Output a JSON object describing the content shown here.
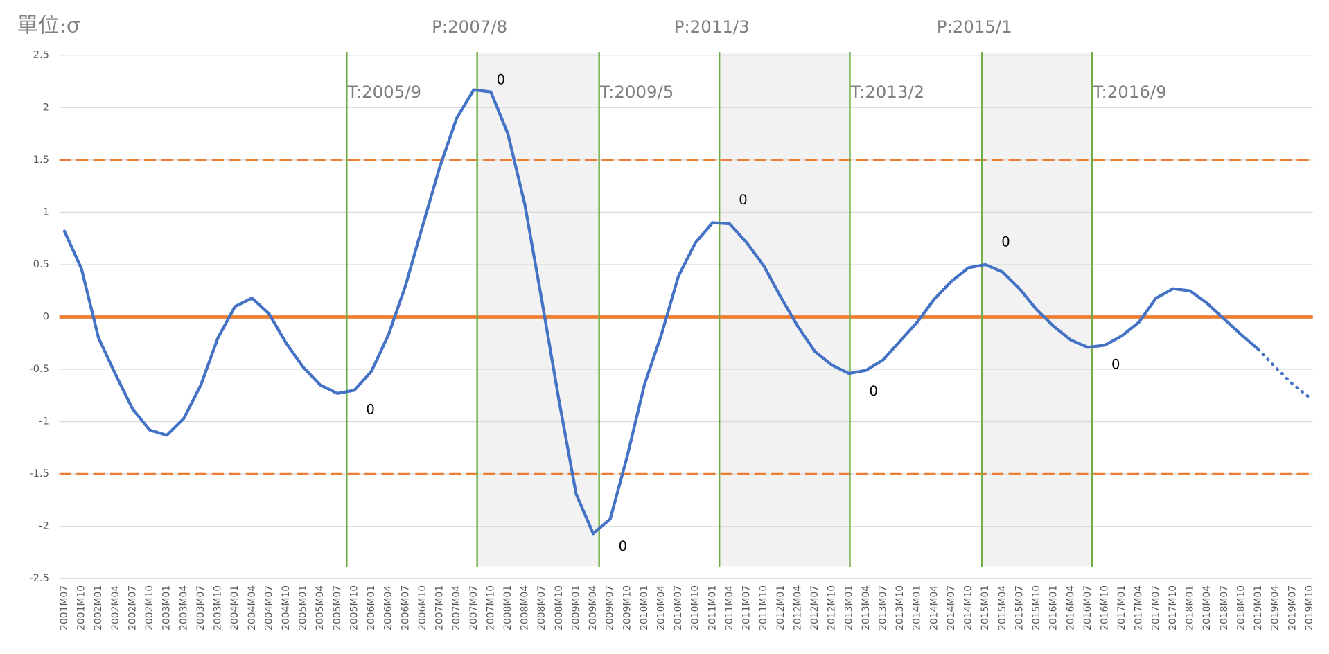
{
  "chart_data": {
    "type": "line",
    "title": "單位:σ",
    "categories": [
      "2001M07",
      "2001M10",
      "2002M01",
      "2002M04",
      "2002M07",
      "2002M10",
      "2003M01",
      "2003M04",
      "2003M07",
      "2003M10",
      "2004M01",
      "2004M04",
      "2004M07",
      "2004M10",
      "2005M01",
      "2005M04",
      "2005M07",
      "2005M10",
      "2006M01",
      "2006M04",
      "2006M07",
      "2006M10",
      "2007M01",
      "2007M04",
      "2007M07",
      "2007M10",
      "2008M01",
      "2008M04",
      "2008M07",
      "2008M10",
      "2009M01",
      "2009M04",
      "2009M07",
      "2009M10",
      "2010M01",
      "2010M04",
      "2010M07",
      "2010M10",
      "2011M01",
      "2011M04",
      "2011M07",
      "2011M10",
      "2012M01",
      "2012M04",
      "2012M07",
      "2012M10",
      "2013M01",
      "2013M04",
      "2013M07",
      "2013M10",
      "2014M01",
      "2014M04",
      "2014M07",
      "2014M10",
      "2015M01",
      "2015M04",
      "2015M07",
      "2015M10",
      "2016M01",
      "2016M04",
      "2016M07",
      "2016M10",
      "2017M01",
      "2017M04",
      "2017M07",
      "2017M10",
      "2018M01",
      "2018M04",
      "2018M07",
      "2018M10",
      "2019M01",
      "2019M04",
      "2019M07",
      "2019M10"
    ],
    "series": [
      {
        "color": "#4472c4",
        "style": "solid",
        "values": [
          0.82,
          0.46,
          -0.2,
          -0.55,
          -0.88,
          -1.08,
          -1.13,
          -0.97,
          -0.65,
          -0.2,
          0.1,
          0.18,
          0.03,
          -0.25,
          -0.48,
          -0.65,
          -0.73,
          -0.7,
          -0.52,
          -0.17,
          0.3,
          0.87,
          1.43,
          1.9,
          2.17,
          2.15,
          1.75,
          1.07,
          0.15,
          -0.8,
          -1.69,
          -2.07,
          -1.93,
          -1.33,
          -0.65,
          -0.17,
          0.39,
          0.71,
          0.9,
          0.89,
          0.71,
          0.49,
          0.19,
          -0.09,
          -0.33,
          -0.46,
          -0.54,
          -0.51,
          -0.41,
          -0.23,
          -0.05,
          0.17,
          0.34,
          0.47,
          0.5,
          0.43,
          0.27,
          0.07,
          -0.09,
          -0.22,
          -0.29,
          -0.27,
          -0.18,
          -0.05,
          0.18,
          0.27,
          0.25,
          0.13,
          -0.02,
          -0.17,
          -0.31,
          null,
          null,
          null
        ]
      },
      {
        "color": "#4472c4",
        "style": "dotted",
        "values": [
          null,
          null,
          null,
          null,
          null,
          null,
          null,
          null,
          null,
          null,
          null,
          null,
          null,
          null,
          null,
          null,
          null,
          null,
          null,
          null,
          null,
          null,
          null,
          null,
          null,
          null,
          null,
          null,
          null,
          null,
          null,
          null,
          null,
          null,
          null,
          null,
          null,
          null,
          null,
          null,
          null,
          null,
          null,
          null,
          null,
          null,
          null,
          null,
          null,
          null,
          null,
          null,
          null,
          null,
          null,
          null,
          null,
          null,
          null,
          null,
          null,
          null,
          null,
          null,
          null,
          null,
          null,
          null,
          null,
          null,
          -0.31,
          -0.48,
          -0.64,
          -0.77
        ]
      }
    ],
    "reference_lines": [
      {
        "value": 1.5,
        "style": "dashed",
        "color": "#ed7d31"
      },
      {
        "value": 0,
        "style": "solid",
        "color": "#ed7d31"
      },
      {
        "value": -1.5,
        "style": "dashed",
        "color": "#ed7d31"
      }
    ],
    "turning_points": [
      {
        "label": "T:2005/9",
        "x": 16.55,
        "marker": "0"
      },
      {
        "label": "P:2007/8",
        "x": 24.2,
        "marker": "0"
      },
      {
        "label": "T:2009/5",
        "x": 31.35,
        "marker": "0"
      },
      {
        "label": "P:2011/3",
        "x": 38.4,
        "marker": "0"
      },
      {
        "label": "T:2013/2",
        "x": 46.05,
        "marker": "0"
      },
      {
        "label": "P:2015/1",
        "x": 53.8,
        "marker": "0"
      },
      {
        "label": "T:2016/9",
        "x": 60.25,
        "marker": "0"
      }
    ],
    "turning_line_color": "#70ad47",
    "shade_color": "#f2f2f2",
    "ylim": [
      -2.5,
      2.5
    ],
    "yticks": [
      2.5,
      2,
      1.5,
      1,
      0.5,
      0,
      -0.5,
      -1,
      -1.5,
      -2,
      -2.5
    ],
    "grid": true
  }
}
